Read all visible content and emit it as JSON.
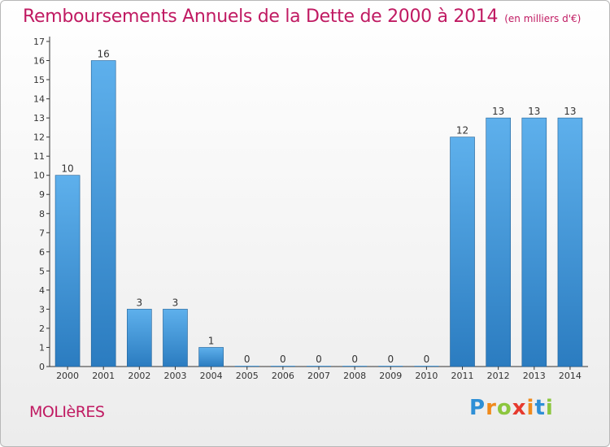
{
  "title": "Remboursements Annuels de la Dette de 2000 à 2014",
  "subtitle": "(en milliers d'€)",
  "commune": "MOLIèRES",
  "logo": {
    "letters": [
      "P",
      "r",
      "o",
      "x",
      "i",
      "t",
      "i"
    ],
    "colors": [
      "#2e8fd6",
      "#f08a1c",
      "#8cc63e",
      "#e63a2e",
      "#f08a1c",
      "#2e8fd6",
      "#8cc63e"
    ]
  },
  "colors": {
    "title": "#c01a62",
    "bar_light": "#5eb0ec",
    "bar_dark": "#2b7cc0",
    "axis": "#333333",
    "grid": "#999999"
  },
  "chart_data": {
    "type": "bar",
    "categories": [
      "2000",
      "2001",
      "2002",
      "2003",
      "2004",
      "2005",
      "2006",
      "2007",
      "2008",
      "2009",
      "2010",
      "2011",
      "2012",
      "2013",
      "2014"
    ],
    "values": [
      10,
      16,
      3,
      3,
      1,
      0,
      0,
      0,
      0,
      0,
      0,
      12,
      13,
      13,
      13
    ],
    "data_labels": [
      "10",
      "16",
      "3",
      "3",
      "1",
      "0",
      "0",
      "0",
      "0",
      "0",
      "0",
      "12",
      "13",
      "13",
      "13"
    ],
    "yticks": [
      0,
      1,
      2,
      3,
      4,
      5,
      6,
      7,
      8,
      9,
      10,
      11,
      12,
      13,
      14,
      15,
      16,
      17
    ],
    "ylim": [
      0,
      17
    ],
    "grid": false
  }
}
